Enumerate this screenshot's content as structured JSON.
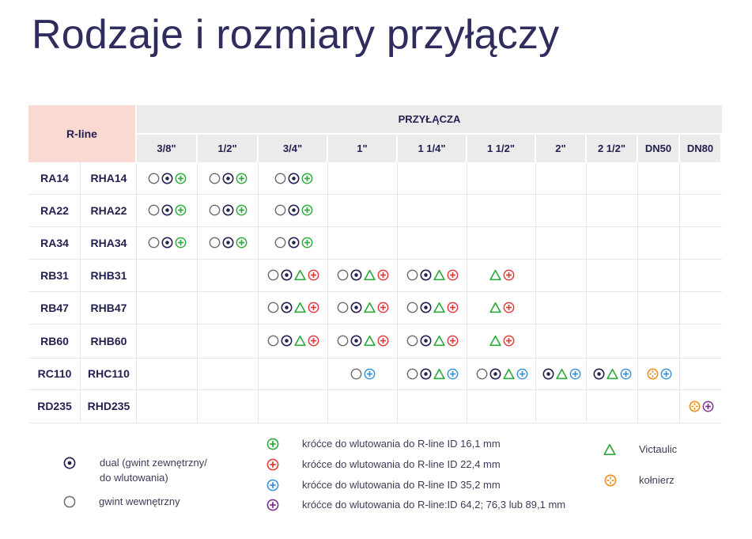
{
  "title": "Rodzaje i rozmiary przyłączy",
  "table": {
    "rline_header": "R-line",
    "connections_header": "PRZYŁĄCZA",
    "sizes": [
      "3/8\"",
      "1/2\"",
      "3/4\"",
      "1\"",
      "1 1/4\"",
      "1 1/2\"",
      "2\"",
      "2 1/2\"",
      "DN50",
      "DN80"
    ],
    "rows": [
      {
        "ra": "RA14",
        "rha": "RHA14",
        "cells": [
          [
            "open",
            "dual",
            "green"
          ],
          [
            "open",
            "dual",
            "green"
          ],
          [
            "open",
            "dual",
            "green"
          ],
          [],
          [],
          [],
          [],
          [],
          [],
          []
        ]
      },
      {
        "ra": "RA22",
        "rha": "RHA22",
        "cells": [
          [
            "open",
            "dual",
            "green"
          ],
          [
            "open",
            "dual",
            "green"
          ],
          [
            "open",
            "dual",
            "green"
          ],
          [],
          [],
          [],
          [],
          [],
          [],
          []
        ]
      },
      {
        "ra": "RA34",
        "rha": "RHA34",
        "cells": [
          [
            "open",
            "dual",
            "green"
          ],
          [
            "open",
            "dual",
            "green"
          ],
          [
            "open",
            "dual",
            "green"
          ],
          [],
          [],
          [],
          [],
          [],
          [],
          []
        ]
      },
      {
        "ra": "RB31",
        "rha": "RHB31",
        "cells": [
          [],
          [],
          [
            "open",
            "dual",
            "triangle",
            "red"
          ],
          [
            "open",
            "dual",
            "triangle",
            "red"
          ],
          [
            "open",
            "dual",
            "triangle",
            "red"
          ],
          [
            "triangle",
            "red"
          ],
          [],
          [],
          [],
          []
        ]
      },
      {
        "ra": "RB47",
        "rha": "RHB47",
        "cells": [
          [],
          [],
          [
            "open",
            "dual",
            "triangle",
            "red"
          ],
          [
            "open",
            "dual",
            "triangle",
            "red"
          ],
          [
            "open",
            "dual",
            "triangle",
            "red"
          ],
          [
            "triangle",
            "red"
          ],
          [],
          [],
          [],
          []
        ]
      },
      {
        "ra": "RB60",
        "rha": "RHB60",
        "cells": [
          [],
          [],
          [
            "open",
            "dual",
            "triangle",
            "red"
          ],
          [
            "open",
            "dual",
            "triangle",
            "red"
          ],
          [
            "open",
            "dual",
            "triangle",
            "red"
          ],
          [
            "triangle",
            "red"
          ],
          [],
          [],
          [],
          []
        ]
      },
      {
        "ra": "RC110",
        "rha": "RHC110",
        "cells": [
          [],
          [],
          [],
          [
            "open",
            "blue"
          ],
          [
            "open",
            "dual",
            "triangle",
            "blue"
          ],
          [
            "open",
            "dual",
            "triangle",
            "blue"
          ],
          [
            "dual",
            "triangle",
            "blue"
          ],
          [
            "dual",
            "triangle",
            "blue"
          ],
          [
            "flange",
            "blue"
          ],
          []
        ]
      },
      {
        "ra": "RD235",
        "rha": "RHD235",
        "cells": [
          [],
          [],
          [],
          [],
          [],
          [],
          [],
          [],
          [],
          [
            "flange",
            "purple"
          ]
        ]
      }
    ]
  },
  "legend": {
    "dual": "dual (gwint zewnętrzny/\ndo wlutowania)",
    "open": "gwint wewnętrzny",
    "green": "króćce do wlutowania do R-line ID 16,1 mm",
    "red": "króćce do wlutowania do R-line ID 22,4 mm",
    "blue": "króćce do wlutowania do R-line ID 35,2 mm",
    "purple": "króćce do wlutowania do R-line:ID 64,2; 76,3 lub 89,1 mm",
    "triangle": "Victaulic",
    "flange": "kołnierz"
  },
  "colors": {
    "navy": "#23214f",
    "green": "#2faa3c",
    "red": "#e33b3b",
    "blue": "#3a94d6",
    "purple": "#7b2f8e",
    "orange": "#f0901e",
    "rline_bg": "#f9d9d2",
    "header_bg": "#ebebeb"
  }
}
